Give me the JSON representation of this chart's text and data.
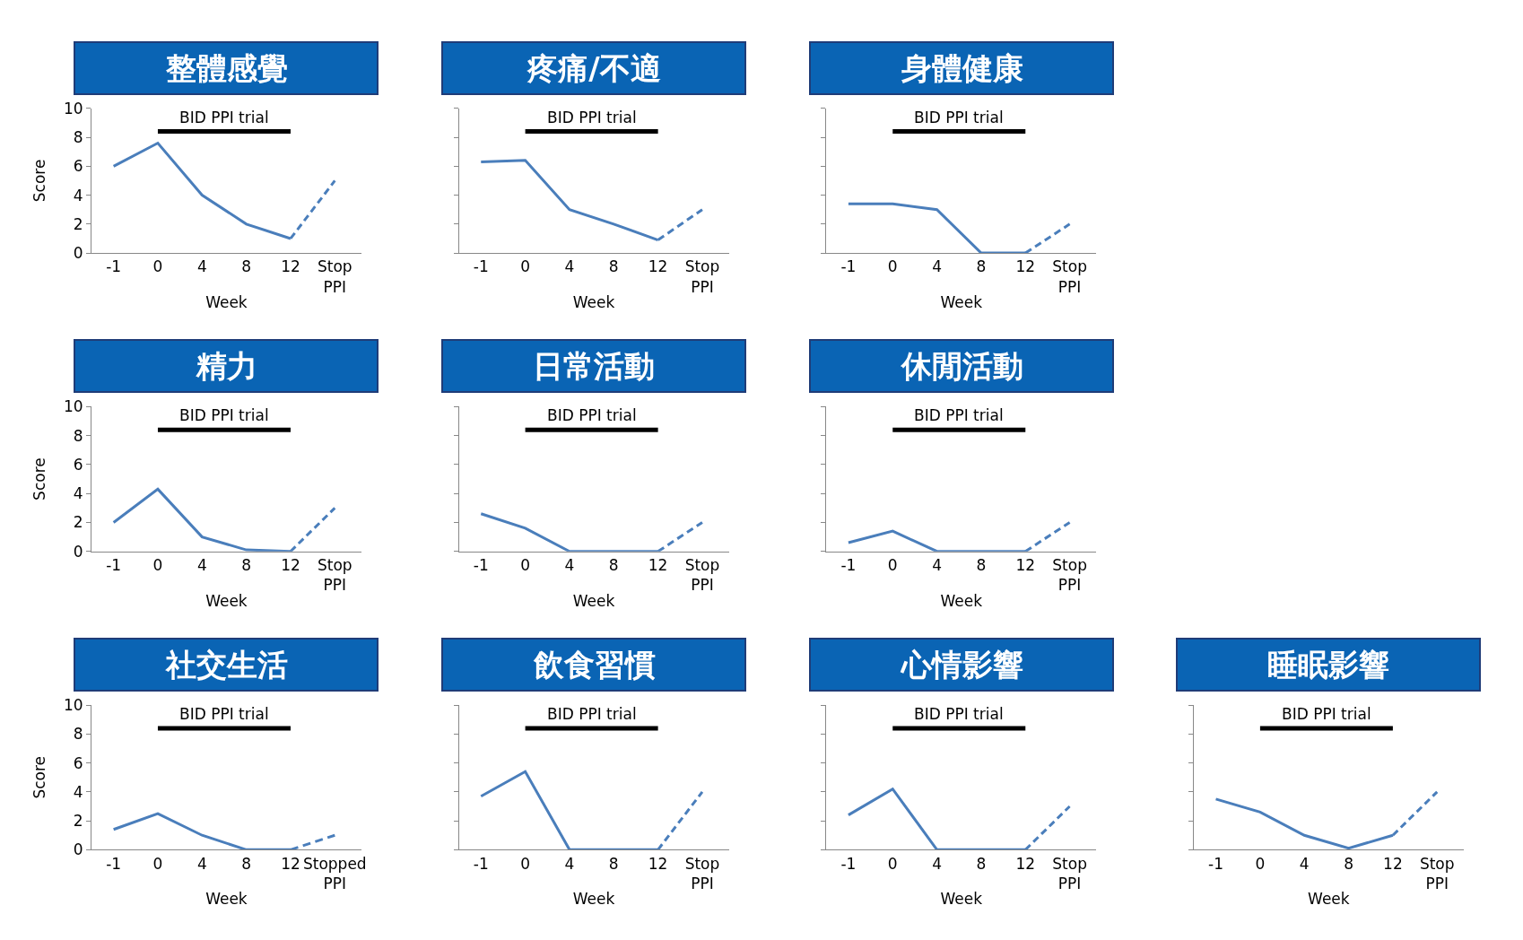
{
  "chart_data": [
    {
      "type": "line",
      "title": "整體感覺",
      "xlabel": "Week",
      "ylabel": "Score",
      "categories": [
        "-1",
        "0",
        "4",
        "8",
        "12",
        "Stop\nPPI"
      ],
      "ylim": [
        0,
        10
      ],
      "yticks": [
        0,
        2,
        4,
        6,
        8,
        10
      ],
      "legend": false,
      "marker": "none",
      "series": [
        {
          "type": "line",
          "name": "BID PPI trial",
          "color": "#000000",
          "x": [
            "0",
            "12"
          ],
          "values": [
            8.4,
            8.4
          ]
        },
        {
          "color": "#4a7ebb",
          "line_style": "solid",
          "values": [
            6,
            7.6,
            4,
            2,
            1,
            null
          ]
        },
        {
          "color": "#4a7ebb",
          "line_style": "dashed",
          "values": [
            null,
            null,
            null,
            null,
            1,
            5
          ]
        }
      ]
    },
    {
      "type": "line",
      "title": "疼痛/不適",
      "xlabel": "Week",
      "categories": [
        "-1",
        "0",
        "4",
        "8",
        "12",
        "Stop\nPPI"
      ],
      "ylim": [
        0,
        10
      ],
      "yticks": [
        0,
        2,
        4,
        6,
        8,
        10
      ],
      "tick_labels": "x",
      "legend": false,
      "marker": "none",
      "series": [
        {
          "type": "line",
          "name": "BID PPI trial",
          "color": "#000000",
          "x": [
            "0",
            "12"
          ],
          "values": [
            8.4,
            8.4
          ]
        },
        {
          "color": "#4a7ebb",
          "line_style": "solid",
          "values": [
            6.3,
            6.4,
            3,
            2,
            0.9,
            null
          ]
        },
        {
          "color": "#4a7ebb",
          "line_style": "dashed",
          "values": [
            null,
            null,
            null,
            null,
            0.9,
            3
          ]
        }
      ]
    },
    {
      "type": "line",
      "title": "身體健康",
      "xlabel": "Week",
      "categories": [
        "-1",
        "0",
        "4",
        "8",
        "12",
        "Stop\nPPI"
      ],
      "ylim": [
        0,
        10
      ],
      "yticks": [
        0,
        2,
        4,
        6,
        8,
        10
      ],
      "tick_labels": "x",
      "legend": false,
      "marker": "none",
      "series": [
        {
          "type": "line",
          "name": "BID PPI trial",
          "color": "#000000",
          "x": [
            "0",
            "12"
          ],
          "values": [
            8.4,
            8.4
          ]
        },
        {
          "color": "#4a7ebb",
          "line_style": "solid",
          "values": [
            3.4,
            3.4,
            3,
            0,
            0,
            null
          ]
        },
        {
          "color": "#4a7ebb",
          "line_style": "dashed",
          "values": [
            null,
            null,
            null,
            null,
            0,
            2
          ]
        }
      ]
    },
    {
      "type": "line",
      "title": "精力",
      "xlabel": "Week",
      "ylabel": "Score",
      "categories": [
        "-1",
        "0",
        "4",
        "8",
        "12",
        "Stop\nPPI"
      ],
      "ylim": [
        0,
        10
      ],
      "yticks": [
        0,
        2,
        4,
        6,
        8,
        10
      ],
      "legend": false,
      "marker": "none",
      "series": [
        {
          "type": "line",
          "name": "BID PPI trial",
          "color": "#000000",
          "x": [
            "0",
            "12"
          ],
          "values": [
            8.4,
            8.4
          ]
        },
        {
          "color": "#4a7ebb",
          "line_style": "solid",
          "values": [
            2,
            4.3,
            1,
            0.1,
            0,
            null
          ]
        },
        {
          "color": "#4a7ebb",
          "line_style": "dashed",
          "values": [
            null,
            null,
            null,
            null,
            0,
            3
          ]
        }
      ]
    },
    {
      "type": "line",
      "title": "日常活動",
      "xlabel": "Week",
      "categories": [
        "-1",
        "0",
        "4",
        "8",
        "12",
        "Stop\nPPI"
      ],
      "ylim": [
        0,
        10
      ],
      "yticks": [
        0,
        2,
        4,
        6,
        8,
        10
      ],
      "tick_labels": "x",
      "legend": false,
      "marker": "none",
      "series": [
        {
          "type": "line",
          "name": "BID PPI trial",
          "color": "#000000",
          "x": [
            "0",
            "12"
          ],
          "values": [
            8.4,
            8.4
          ]
        },
        {
          "color": "#4a7ebb",
          "line_style": "solid",
          "values": [
            2.6,
            1.6,
            0,
            0,
            0,
            null
          ]
        },
        {
          "color": "#4a7ebb",
          "line_style": "dashed",
          "values": [
            null,
            null,
            null,
            null,
            0,
            2
          ]
        }
      ]
    },
    {
      "type": "line",
      "title": "休閒活動",
      "xlabel": "Week",
      "categories": [
        "-1",
        "0",
        "4",
        "8",
        "12",
        "Stop\nPPI"
      ],
      "ylim": [
        0,
        10
      ],
      "yticks": [
        0,
        2,
        4,
        6,
        8,
        10
      ],
      "tick_labels": "x",
      "legend": false,
      "marker": "none",
      "series": [
        {
          "type": "line",
          "name": "BID PPI trial",
          "color": "#000000",
          "x": [
            "0",
            "12"
          ],
          "values": [
            8.4,
            8.4
          ]
        },
        {
          "color": "#4a7ebb",
          "line_style": "solid",
          "values": [
            0.6,
            1.4,
            0,
            0,
            0,
            null
          ]
        },
        {
          "color": "#4a7ebb",
          "line_style": "dashed",
          "values": [
            null,
            null,
            null,
            null,
            0,
            2
          ]
        }
      ]
    },
    {
      "type": "line",
      "title": "社交生活",
      "xlabel": "Week",
      "ylabel": "Score",
      "categories": [
        "-1",
        "0",
        "4",
        "8",
        "12",
        "Stopped\nPPI"
      ],
      "ylim": [
        0,
        10
      ],
      "yticks": [
        0,
        2,
        4,
        6,
        8,
        10
      ],
      "legend": false,
      "marker": "none",
      "series": [
        {
          "type": "line",
          "name": "BID PPI trial",
          "color": "#000000",
          "x": [
            "0",
            "12"
          ],
          "values": [
            8.4,
            8.4
          ]
        },
        {
          "color": "#4a7ebb",
          "line_style": "solid",
          "values": [
            1.4,
            2.5,
            1,
            0,
            0,
            null
          ]
        },
        {
          "color": "#4a7ebb",
          "line_style": "dashed",
          "values": [
            null,
            null,
            null,
            null,
            0,
            1
          ]
        }
      ]
    },
    {
      "type": "line",
      "title": "飲食習慣",
      "xlabel": "Week",
      "categories": [
        "-1",
        "0",
        "4",
        "8",
        "12",
        "Stop\nPPI"
      ],
      "ylim": [
        0,
        10
      ],
      "yticks": [
        0,
        2,
        4,
        6,
        8,
        10
      ],
      "tick_labels": "x",
      "legend": false,
      "marker": "none",
      "series": [
        {
          "type": "line",
          "name": "BID PPI trial",
          "color": "#000000",
          "x": [
            "0",
            "12"
          ],
          "values": [
            8.4,
            8.4
          ]
        },
        {
          "color": "#4a7ebb",
          "line_style": "solid",
          "values": [
            3.7,
            5.4,
            0,
            0,
            0,
            null
          ]
        },
        {
          "color": "#4a7ebb",
          "line_style": "dashed",
          "values": [
            null,
            null,
            null,
            null,
            0,
            4
          ]
        }
      ]
    },
    {
      "type": "line",
      "title": "心情影響",
      "xlabel": "Week",
      "categories": [
        "-1",
        "0",
        "4",
        "8",
        "12",
        "Stop\nPPI"
      ],
      "ylim": [
        0,
        10
      ],
      "yticks": [
        0,
        2,
        4,
        6,
        8,
        10
      ],
      "tick_labels": "x",
      "legend": false,
      "marker": "none",
      "series": [
        {
          "type": "line",
          "name": "BID PPI trial",
          "color": "#000000",
          "x": [
            "0",
            "12"
          ],
          "values": [
            8.4,
            8.4
          ]
        },
        {
          "color": "#4a7ebb",
          "line_style": "solid",
          "values": [
            2.4,
            4.2,
            0,
            0,
            0,
            null
          ]
        },
        {
          "color": "#4a7ebb",
          "line_style": "dashed",
          "values": [
            null,
            null,
            null,
            null,
            0,
            3
          ]
        }
      ]
    },
    {
      "type": "line",
      "title": "睡眠影響",
      "xlabel": "Week",
      "categories": [
        "-1",
        "0",
        "4",
        "8",
        "12",
        "Stop\nPPI"
      ],
      "ylim": [
        0,
        10
      ],
      "yticks": [
        0,
        2,
        4,
        6,
        8,
        10
      ],
      "tick_labels": "x",
      "legend": false,
      "marker": "none",
      "series": [
        {
          "type": "line",
          "name": "BID PPI trial",
          "color": "#000000",
          "x": [
            "0",
            "12"
          ],
          "values": [
            8.4,
            8.4
          ]
        },
        {
          "color": "#4a7ebb",
          "line_style": "solid",
          "values": [
            3.5,
            2.6,
            1,
            0.1,
            1,
            null
          ]
        },
        {
          "color": "#4a7ebb",
          "line_style": "dashed",
          "values": [
            null,
            null,
            null,
            null,
            1,
            4
          ]
        }
      ]
    }
  ]
}
